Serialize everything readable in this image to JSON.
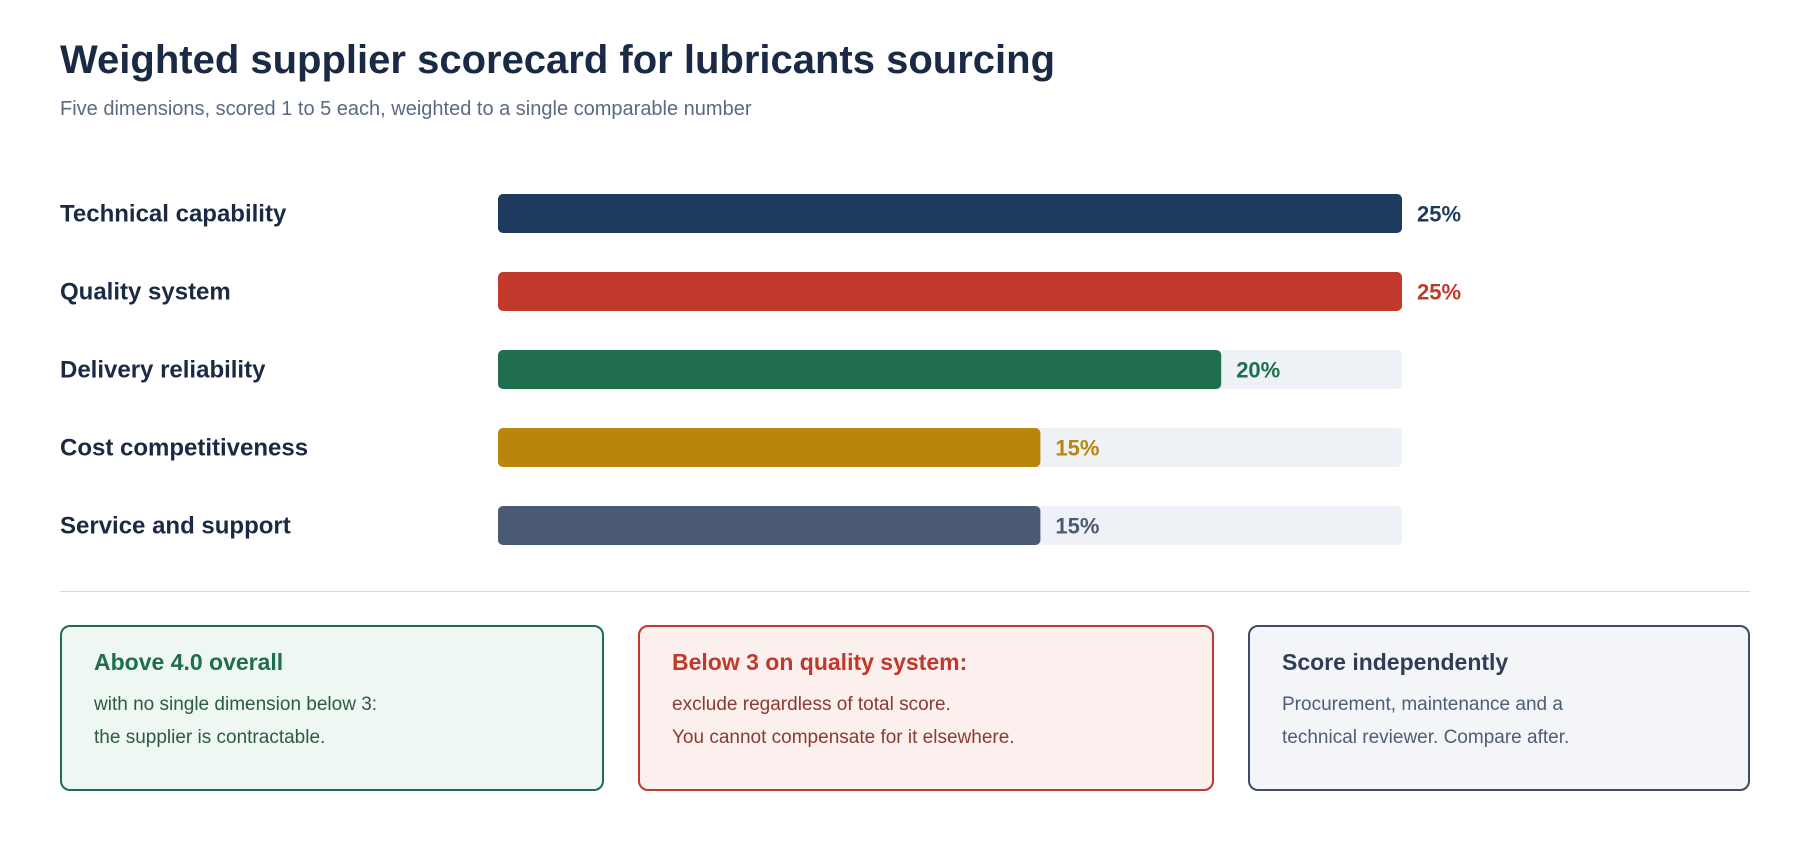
{
  "header": {
    "title": "Weighted supplier scorecard for lubricants sourcing",
    "subtitle": "Five dimensions, scored 1 to 5 each, weighted to a single comparable number"
  },
  "chart_data": {
    "type": "bar",
    "orientation": "horizontal",
    "title": "Weighted supplier scorecard for lubricants sourcing",
    "subtitle": "Five dimensions, scored 1 to 5 each, weighted to a single comparable number",
    "categories": [
      "Technical capability",
      "Quality system",
      "Delivery reliability",
      "Cost competitiveness",
      "Service and support"
    ],
    "values": [
      25,
      25,
      20,
      15,
      15
    ],
    "value_labels": [
      "25%",
      "25%",
      "20%",
      "15%",
      "15%"
    ],
    "colors": [
      "#1f3a5f",
      "#c0392b",
      "#1f6e4e",
      "#b8860b",
      "#4a5a72"
    ],
    "label_colors": [
      "#1f3a5f",
      "#c0392b",
      "#1f6e4e",
      "#b8860b",
      "#4a5a72"
    ],
    "track_color": "#eef1f5",
    "xlim": [
      0,
      25
    ],
    "grid": false,
    "legend": "none"
  },
  "cards": [
    {
      "title": "Above 4.0 overall",
      "lines": [
        "with no single dimension below 3:",
        "the supplier is contractable."
      ]
    },
    {
      "title": "Below 3 on quality system:",
      "lines": [
        "exclude regardless of total score.",
        "You cannot compensate for it elsewhere."
      ]
    },
    {
      "title": "Score independently",
      "lines": [
        "Procurement, maintenance and a",
        "technical reviewer. Compare after."
      ]
    }
  ]
}
